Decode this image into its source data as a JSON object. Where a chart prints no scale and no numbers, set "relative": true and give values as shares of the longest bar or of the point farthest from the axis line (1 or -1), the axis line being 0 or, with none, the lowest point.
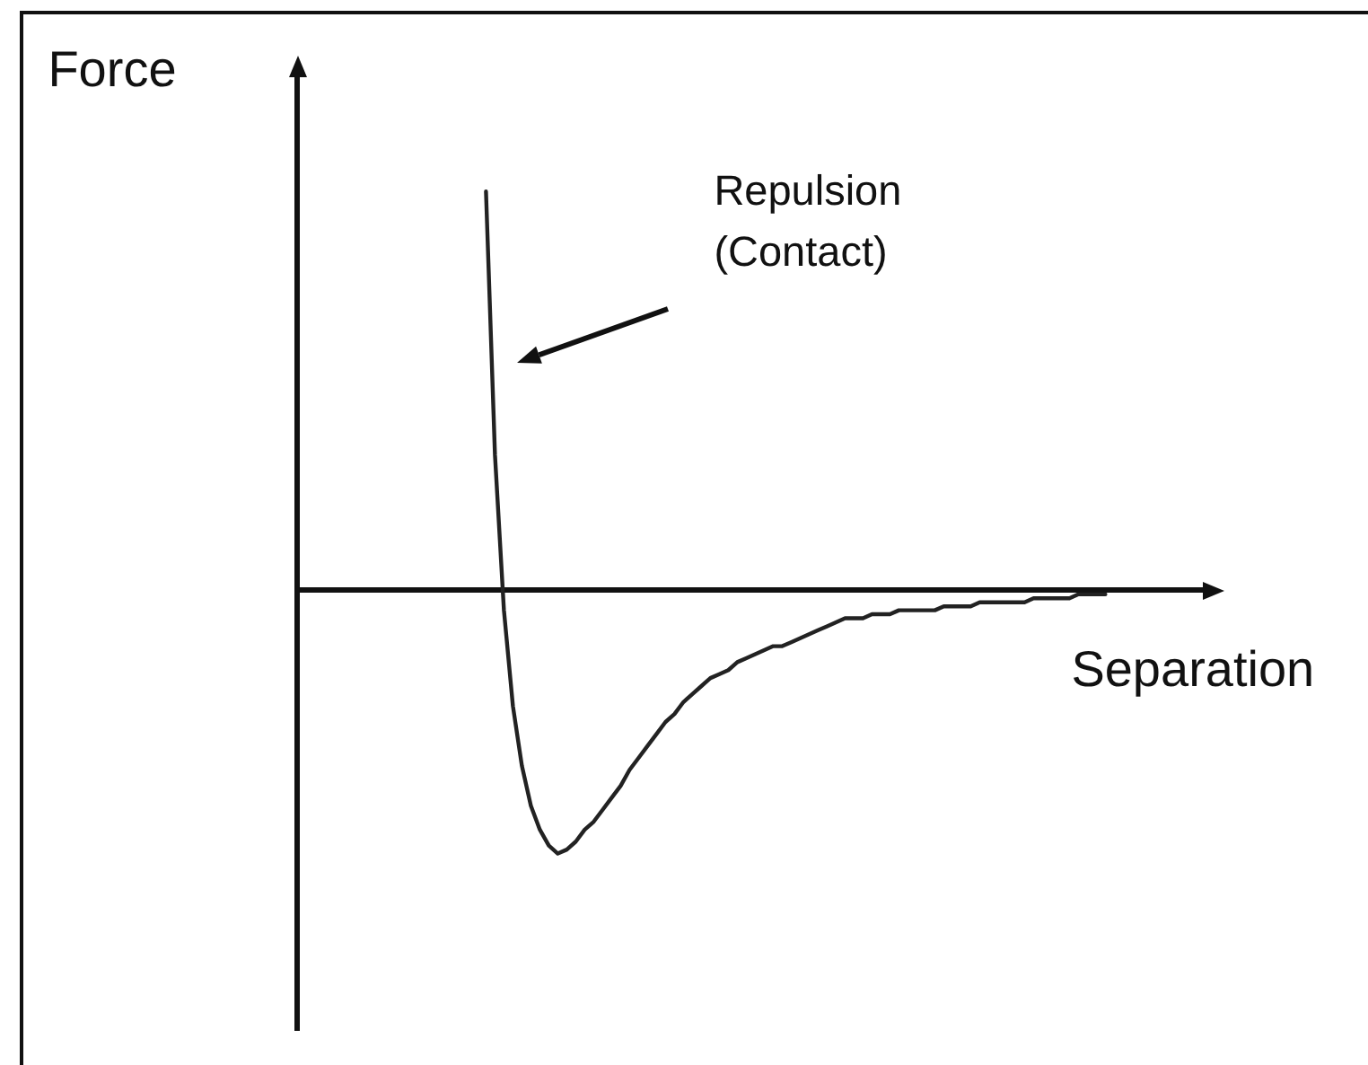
{
  "chart_data": {
    "type": "line",
    "ylabel": "Force",
    "xlabel": "Separation",
    "annotations": [
      "Repulsion (Contact)"
    ],
    "relative": true,
    "line_style": "solid",
    "color": "#222222",
    "categories": [
      null,
      null,
      null,
      null,
      null,
      null,
      null,
      null,
      null,
      null,
      null,
      null,
      null,
      null,
      null,
      null,
      null,
      null,
      null,
      null,
      null,
      null,
      null,
      null,
      null,
      null,
      null,
      null,
      null,
      null,
      null,
      null,
      null,
      null,
      null,
      null,
      null,
      null,
      null,
      null,
      null,
      null,
      null,
      null,
      null,
      null,
      null,
      null,
      null,
      null,
      null,
      null,
      null,
      null,
      null,
      null,
      null,
      null,
      null,
      null,
      null,
      null,
      null,
      null,
      null,
      null,
      null,
      null,
      null,
      null,
      null,
      null,
      null,
      null,
      null,
      null,
      null,
      null,
      null,
      null,
      null,
      null,
      null,
      null,
      null,
      null,
      null,
      null,
      null,
      null,
      null,
      null,
      null,
      null,
      null,
      null,
      null,
      null,
      null,
      null,
      null,
      null
    ],
    "values": [
      null,
      null,
      null,
      null,
      null,
      null,
      null,
      null,
      null,
      null,
      null,
      null,
      null,
      null,
      null,
      null,
      null,
      null,
      null,
      null,
      null,
      1.0,
      0.34,
      -0.05,
      -0.29,
      -0.44,
      -0.54,
      -0.6,
      -0.64,
      -0.66,
      -0.65,
      -0.63,
      -0.6,
      -0.58,
      -0.55,
      -0.52,
      -0.49,
      -0.45,
      -0.42,
      -0.39,
      -0.36,
      -0.33,
      -0.31,
      -0.28,
      -0.26,
      -0.24,
      -0.22,
      -0.21,
      -0.2,
      -0.18,
      -0.17,
      -0.16,
      -0.15,
      -0.14,
      -0.14,
      -0.13,
      -0.12,
      -0.11,
      -0.1,
      -0.09,
      -0.08,
      -0.07,
      -0.07,
      -0.07,
      -0.06,
      -0.06,
      -0.06,
      -0.05,
      -0.05,
      -0.05,
      -0.05,
      -0.05,
      -0.04,
      -0.04,
      -0.04,
      -0.04,
      -0.03,
      -0.03,
      -0.03,
      -0.03,
      -0.03,
      -0.03,
      -0.02,
      -0.02,
      -0.02,
      -0.02,
      -0.02,
      -0.01,
      -0.01,
      -0.01,
      -0.01,
      null,
      null,
      null,
      null,
      null,
      null,
      null,
      null,
      null,
      null,
      null
    ]
  }
}
